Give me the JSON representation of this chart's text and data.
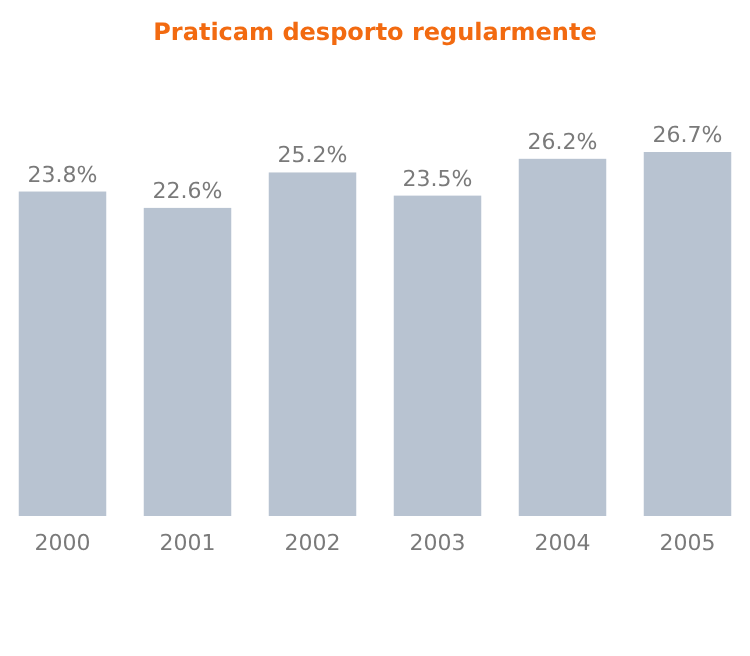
{
  "chart_data": {
    "type": "bar",
    "title": "Praticam desporto regularmente",
    "categories": [
      "2000",
      "2001",
      "2002",
      "2003",
      "2004",
      "2005"
    ],
    "values": [
      23.8,
      22.6,
      25.2,
      23.5,
      26.2,
      26.7
    ],
    "value_labels": [
      "23.8%",
      "22.6%",
      "25.2%",
      "23.5%",
      "26.2%",
      "26.7%"
    ],
    "color": "#b8c3d1",
    "tick_labels": "x"
  }
}
